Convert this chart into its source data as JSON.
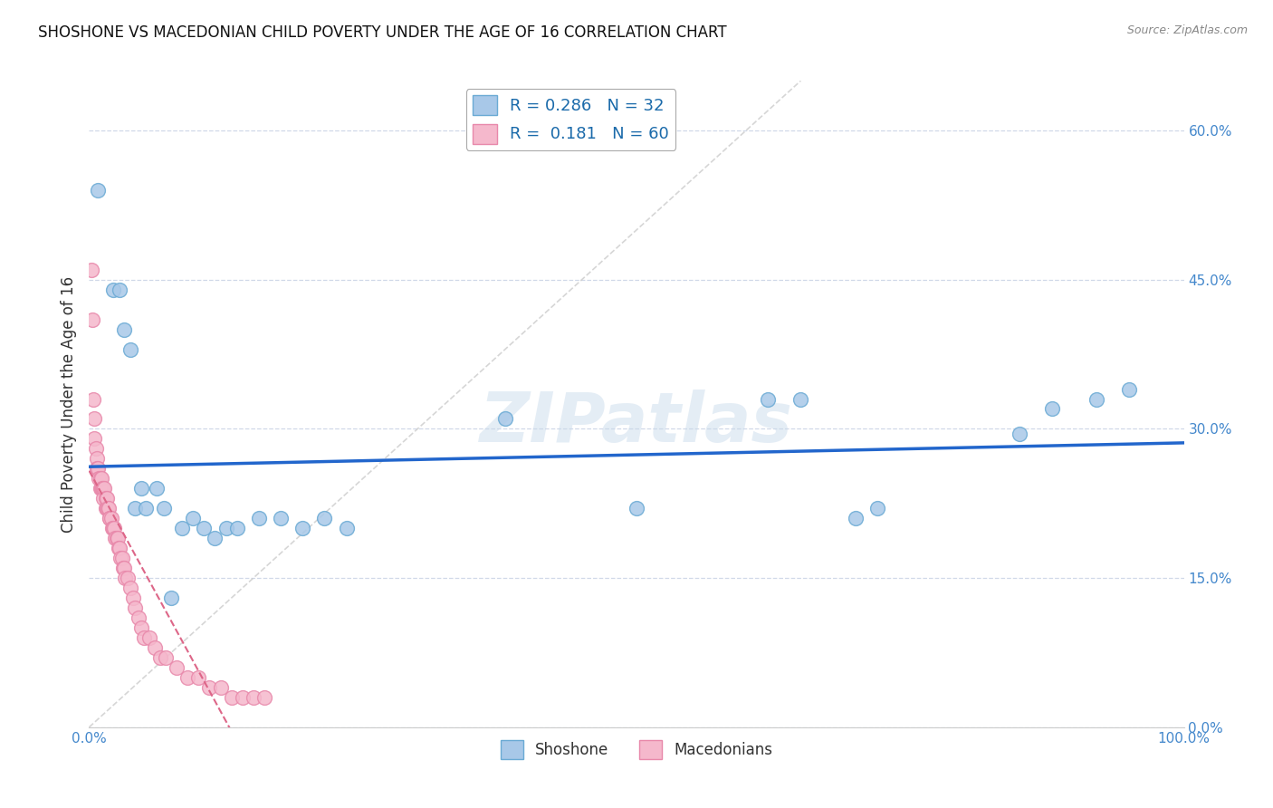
{
  "title": "SHOSHONE VS MACEDONIAN CHILD POVERTY UNDER THE AGE OF 16 CORRELATION CHART",
  "source": "Source: ZipAtlas.com",
  "ylabel": "Child Poverty Under the Age of 16",
  "xlim": [
    0.0,
    1.0
  ],
  "ylim": [
    0.0,
    0.65
  ],
  "yticks": [
    0.0,
    0.15,
    0.3,
    0.45,
    0.6
  ],
  "ytick_labels": [
    "",
    "",
    "",
    "",
    ""
  ],
  "ytick_labels_right": [
    "0.0%",
    "15.0%",
    "30.0%",
    "45.0%",
    "60.0%"
  ],
  "xticks": [
    0.0,
    0.1,
    0.2,
    0.3,
    0.4,
    0.5,
    0.6,
    0.7,
    0.8,
    0.9,
    1.0
  ],
  "xtick_labels": [
    "0.0%",
    "",
    "",
    "",
    "",
    "",
    "",
    "",
    "",
    "",
    "100.0%"
  ],
  "shoshone_color": "#a8c8e8",
  "macedonian_color": "#f5b8cc",
  "shoshone_edge_color": "#6aaad4",
  "macedonian_edge_color": "#e888aa",
  "trend_shoshone_color": "#2266cc",
  "trend_macedonian_color": "#dd6688",
  "trend_diagonal_color": "#cccccc",
  "legend_shoshone_R": "0.286",
  "legend_shoshone_N": "32",
  "legend_macedonian_R": "0.181",
  "legend_macedonian_N": "60",
  "shoshone_x": [
    0.008,
    0.022,
    0.028,
    0.032,
    0.038,
    0.042,
    0.048,
    0.052,
    0.062,
    0.068,
    0.075,
    0.085,
    0.095,
    0.105,
    0.115,
    0.125,
    0.135,
    0.155,
    0.175,
    0.195,
    0.215,
    0.235,
    0.38,
    0.5,
    0.62,
    0.65,
    0.7,
    0.72,
    0.85,
    0.88,
    0.92,
    0.95
  ],
  "shoshone_y": [
    0.54,
    0.44,
    0.44,
    0.4,
    0.38,
    0.22,
    0.24,
    0.22,
    0.24,
    0.22,
    0.13,
    0.2,
    0.21,
    0.2,
    0.19,
    0.2,
    0.2,
    0.21,
    0.21,
    0.2,
    0.21,
    0.2,
    0.31,
    0.22,
    0.33,
    0.33,
    0.21,
    0.22,
    0.295,
    0.32,
    0.33,
    0.34
  ],
  "macedonian_x": [
    0.002,
    0.003,
    0.004,
    0.005,
    0.005,
    0.006,
    0.007,
    0.007,
    0.008,
    0.009,
    0.01,
    0.01,
    0.011,
    0.011,
    0.012,
    0.013,
    0.013,
    0.014,
    0.015,
    0.015,
    0.016,
    0.016,
    0.017,
    0.018,
    0.019,
    0.019,
    0.02,
    0.021,
    0.022,
    0.023,
    0.024,
    0.025,
    0.026,
    0.027,
    0.028,
    0.029,
    0.03,
    0.031,
    0.032,
    0.033,
    0.035,
    0.038,
    0.04,
    0.042,
    0.045,
    0.048,
    0.05,
    0.055,
    0.06,
    0.065,
    0.07,
    0.08,
    0.09,
    0.1,
    0.11,
    0.12,
    0.13,
    0.14,
    0.15,
    0.16
  ],
  "macedonian_y": [
    0.46,
    0.41,
    0.33,
    0.31,
    0.29,
    0.28,
    0.27,
    0.26,
    0.26,
    0.25,
    0.25,
    0.24,
    0.24,
    0.25,
    0.24,
    0.24,
    0.23,
    0.24,
    0.23,
    0.22,
    0.22,
    0.23,
    0.22,
    0.22,
    0.21,
    0.21,
    0.21,
    0.2,
    0.2,
    0.2,
    0.19,
    0.19,
    0.19,
    0.18,
    0.18,
    0.17,
    0.17,
    0.16,
    0.16,
    0.15,
    0.15,
    0.14,
    0.13,
    0.12,
    0.11,
    0.1,
    0.09,
    0.09,
    0.08,
    0.07,
    0.07,
    0.06,
    0.05,
    0.05,
    0.04,
    0.04,
    0.03,
    0.03,
    0.03,
    0.03
  ],
  "background_color": "#ffffff",
  "grid_color": "#d0d8e8",
  "title_color": "#111111",
  "tick_color": "#4488cc",
  "watermark_text": "ZIPatlas",
  "watermark_color": "#c5d8ea",
  "watermark_alpha": 0.45
}
